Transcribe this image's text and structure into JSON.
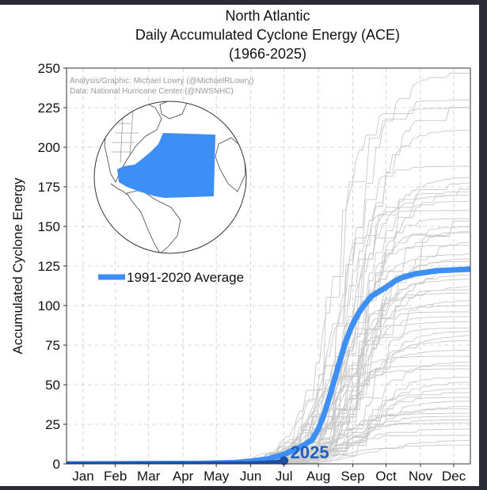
{
  "chart_data": {
    "type": "line",
    "title_lines": [
      "North Atlantic",
      "Daily Accumulated Cyclone Energy (ACE)",
      "(1966-2025)"
    ],
    "ylabel": "Accumulated Cyclone Energy",
    "xlabel": "",
    "ylim": [
      0,
      250
    ],
    "yticks": [
      0,
      25,
      50,
      75,
      100,
      125,
      150,
      175,
      200,
      225,
      250
    ],
    "x_unit": "day of year",
    "xlim": [
      1,
      365
    ],
    "month_labels": [
      "Jan",
      "Feb",
      "Mar",
      "Apr",
      "May",
      "Jun",
      "Jul",
      "Aug",
      "Sep",
      "Oct",
      "Nov",
      "Dec"
    ],
    "month_centers": [
      16,
      45,
      75,
      106,
      136,
      167,
      197,
      228,
      259,
      289,
      320,
      350
    ],
    "grid": true,
    "credits": [
      "Analysis/Graphic: Michael Lowry (@MichaelRLowry)",
      "Data: National Hurricane Center (@NWSNHC)"
    ],
    "legend": {
      "entries": [
        "1991-2020 Average"
      ],
      "placement": "middle-left"
    },
    "inset_map": "globe-with-highlighted-north-atlantic",
    "series": [
      {
        "name": "1991-2020 Average",
        "color": "#3d8ef5",
        "x": [
          1,
          120,
          152,
          166,
          182,
          197,
          213,
          222,
          228,
          234,
          240,
          246,
          252,
          258,
          264,
          270,
          276,
          283,
          290,
          298,
          305,
          315,
          325,
          335,
          350,
          365
        ],
        "y": [
          0,
          0.3,
          0.8,
          1.5,
          3,
          6,
          11,
          15,
          22,
          33,
          47,
          62,
          76,
          87,
          95,
          101,
          106,
          109,
          112,
          116,
          118,
          120,
          121,
          122,
          122.5,
          123
        ]
      },
      {
        "name": "2025",
        "color": "#1b4fa8",
        "x": [
          1,
          120,
          152,
          170,
          180,
          190,
          197
        ],
        "y": [
          0,
          0.1,
          0.3,
          0.5,
          0.8,
          1.2,
          2
        ],
        "label": "2025"
      }
    ],
    "historical_seasons_final_ace": [
      248,
      230,
      227,
      225,
      211,
      188,
      182,
      178,
      176,
      172,
      170,
      166,
      160,
      158,
      155,
      150,
      148,
      146,
      142,
      138,
      133,
      130,
      128,
      126,
      120,
      117,
      113,
      110,
      108,
      104,
      100,
      96,
      93,
      90,
      86,
      84,
      82,
      78,
      72,
      68,
      65,
      62,
      60,
      55,
      52,
      48,
      45,
      42,
      40,
      37,
      35,
      32,
      30,
      28,
      26,
      22,
      18,
      15,
      12
    ]
  }
}
